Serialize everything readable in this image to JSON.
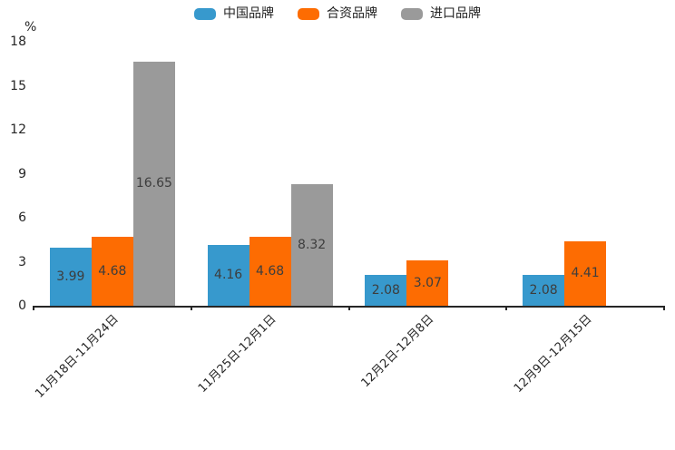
{
  "chart_data": {
    "type": "bar",
    "title": "",
    "xlabel": "",
    "ylabel": "",
    "unit_label": "%",
    "categories": [
      "11月18日-11月24日",
      "11月25日-12月1日",
      "12月2日-12月8日",
      "12月9日-12月15日"
    ],
    "series": [
      {
        "name": "中国品牌",
        "color": "#3799CD",
        "values": [
          3.99,
          4.16,
          2.08,
          2.08
        ]
      },
      {
        "name": "合资品牌",
        "color": "#FD6C02",
        "values": [
          4.68,
          4.68,
          3.07,
          4.41
        ]
      },
      {
        "name": "进口品牌",
        "color": "#9A9A9A",
        "values": [
          16.65,
          8.32,
          null,
          null
        ]
      }
    ],
    "value_labels": [
      "3.99",
      "4.16",
      "2.08",
      "2.08",
      "4.68",
      "4.68",
      "3.07",
      "4.41",
      "16.65",
      "8.32"
    ],
    "yticks": [
      0,
      3,
      6,
      9,
      12,
      15,
      18
    ],
    "ylim": [
      0,
      18
    ],
    "grid": false,
    "legend_position": "top",
    "value_labels_shown": true
  },
  "colors": {
    "background": "#FFFFFF",
    "axis_line": "#262626",
    "tick_text": "#262626",
    "value_label_text": "#3D3D3D",
    "legend_text": "#222222"
  }
}
